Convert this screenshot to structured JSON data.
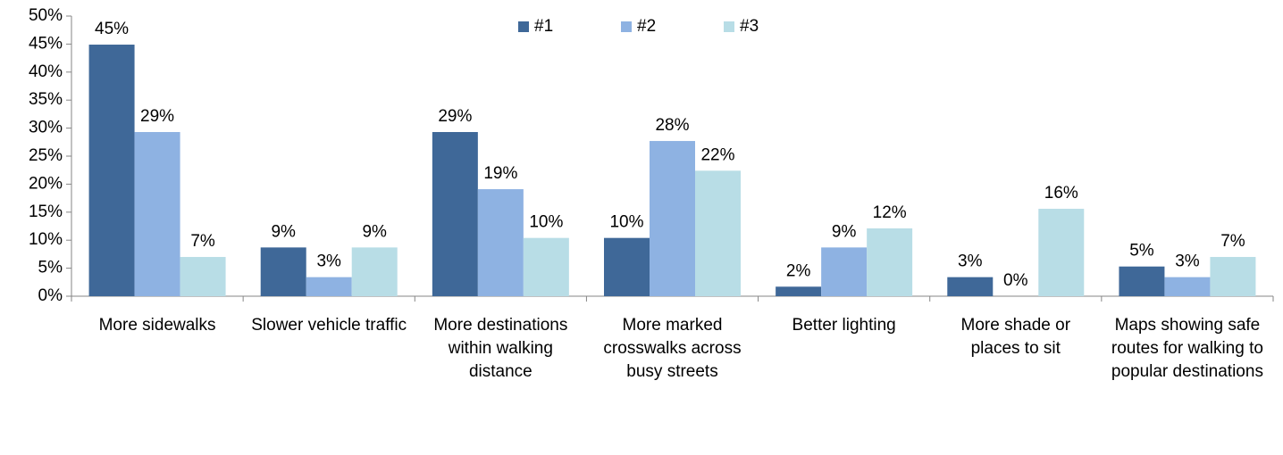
{
  "chart_data": {
    "type": "bar",
    "categories": [
      "More sidewalks",
      "Slower vehicle traffic",
      "More destinations within walking distance",
      "More marked crosswalks across busy streets",
      "Better lighting",
      "More shade or places to sit",
      "Maps showing safe routes for walking to popular destinations"
    ],
    "series": [
      {
        "name": "#1",
        "color": "#3f6898",
        "values": [
          44.9,
          8.7,
          29.3,
          10.4,
          1.7,
          3.4,
          5.3
        ],
        "value_labels": [
          "45%",
          "9%",
          "29%",
          "10%",
          "2%",
          "3%",
          "5%"
        ]
      },
      {
        "name": "#2",
        "color": "#8eb2e2",
        "values": [
          29.3,
          3.4,
          19.1,
          27.7,
          8.7,
          0,
          3.4
        ],
        "value_labels": [
          "29%",
          "3%",
          "19%",
          "28%",
          "9%",
          "0%",
          "3%"
        ]
      },
      {
        "name": "#3",
        "color": "#b8dde6",
        "values": [
          7.0,
          8.7,
          10.4,
          22.4,
          12.1,
          15.6,
          7.0
        ],
        "value_labels": [
          "7%",
          "9%",
          "10%",
          "22%",
          "12%",
          "16%",
          "7%"
        ]
      }
    ],
    "ylim": [
      0,
      50
    ],
    "yticks": [
      {
        "value": 0,
        "label": "0%"
      },
      {
        "value": 5,
        "label": "5%"
      },
      {
        "value": 10,
        "label": "10%"
      },
      {
        "value": 15,
        "label": "15%"
      },
      {
        "value": 20,
        "label": "20%"
      },
      {
        "value": 25,
        "label": "25%"
      },
      {
        "value": 30,
        "label": "30%"
      },
      {
        "value": 35,
        "label": "35%"
      },
      {
        "value": 40,
        "label": "40%"
      },
      {
        "value": 45,
        "label": "45%"
      },
      {
        "value": 50,
        "label": "50%"
      }
    ],
    "legend": "top"
  }
}
